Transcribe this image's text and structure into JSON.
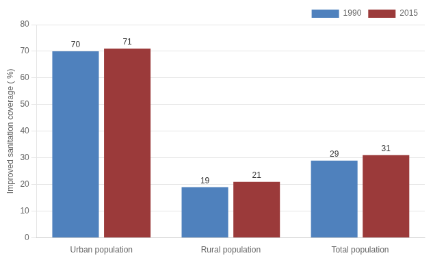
{
  "chart_data": {
    "type": "bar",
    "categories": [
      "Urban population",
      "Rural population",
      "Total population"
    ],
    "series": [
      {
        "name": "1990",
        "color": "#4F81BD",
        "values": [
          70,
          19,
          29
        ]
      },
      {
        "name": "2015",
        "color": "#9B3A3A",
        "values": [
          71,
          21,
          31
        ]
      }
    ],
    "ylabel": "Improved sanitation coverage ( %)",
    "ylim": [
      0,
      80
    ],
    "yticks": [
      0,
      10,
      20,
      30,
      40,
      50,
      60,
      70,
      80
    ],
    "grid": true,
    "legend": "upper right",
    "data_labels": true
  }
}
